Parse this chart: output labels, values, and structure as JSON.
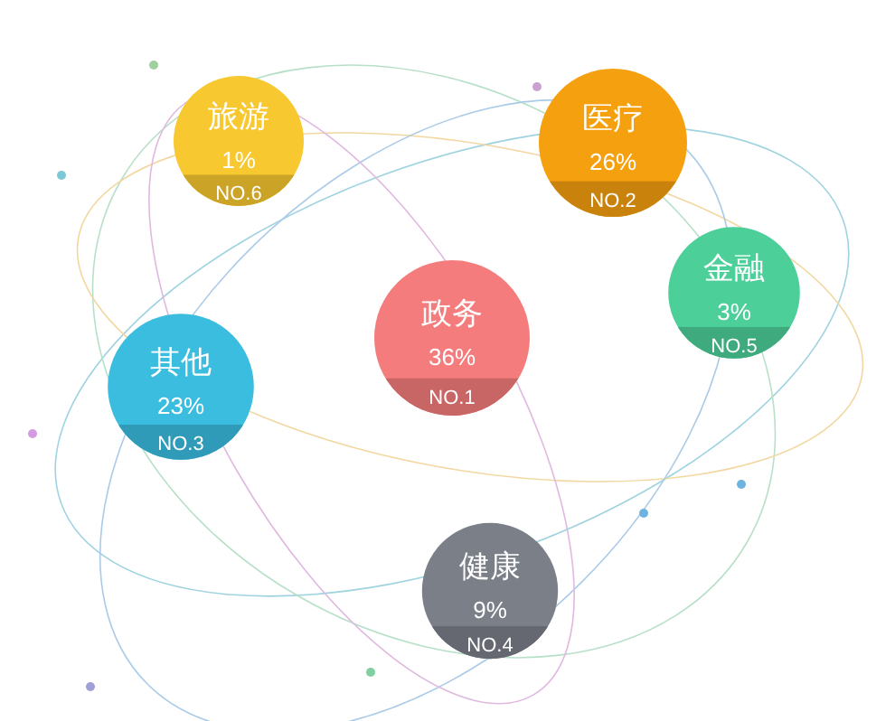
{
  "chart_data": {
    "type": "other",
    "categories": [
      "政务",
      "医疗",
      "其他",
      "健康",
      "金融",
      "旅游"
    ],
    "values": [
      36,
      26,
      23,
      9,
      3,
      1
    ],
    "value_labels": [
      "36%",
      "26%",
      "23%",
      "9%",
      "3%",
      "1%"
    ],
    "colors": [
      "#f47c7c",
      "#f5a00f",
      "#3bbde0",
      "#7b7f88",
      "#4dcf9a",
      "#f7c830"
    ],
    "annotations": [
      {
        "text": "NO.1",
        "x": "政务"
      },
      {
        "text": "NO.2",
        "x": "医疗"
      },
      {
        "text": "NO.3",
        "x": "其他"
      },
      {
        "text": "NO.4",
        "x": "健康"
      },
      {
        "text": "NO.5",
        "x": "金融"
      },
      {
        "text": "NO.6",
        "x": "旅游"
      }
    ]
  }
}
